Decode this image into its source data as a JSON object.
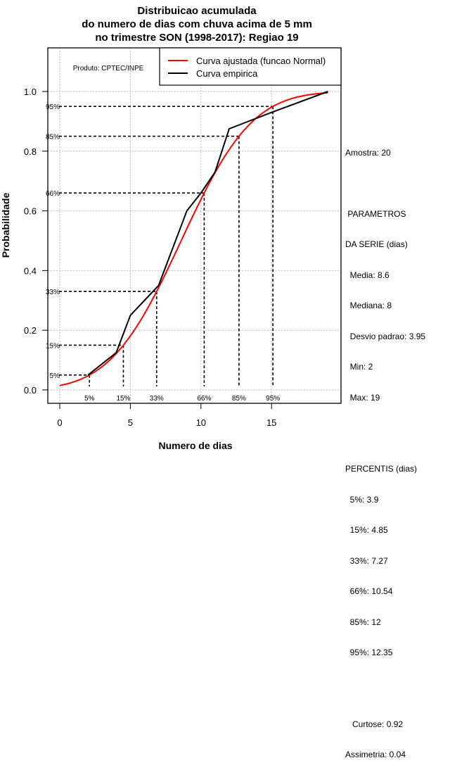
{
  "chart_data": {
    "type": "line",
    "title": [
      "Distribuicao acumulada",
      "do numero de dias com chuva acima de 5 mm",
      "no trimestre SON (1998-2017): Regiao 19"
    ],
    "xlabel": "Numero de dias",
    "ylabel": "Probabilidade",
    "xlim": [
      0,
      19
    ],
    "ylim": [
      0,
      1.1
    ],
    "xticks": [
      0,
      5,
      10,
      15
    ],
    "yticks": [
      0.0,
      0.2,
      0.4,
      0.6,
      0.8,
      1.0
    ],
    "ytick_labels": [
      "0.0",
      "0.2",
      "0.4",
      "0.6",
      "0.8",
      "1.0"
    ],
    "grid": true,
    "legend_position": "top-right",
    "annotation": "Produto: CPTEC/INPE",
    "series": [
      {
        "name": "Curva ajustada (funcao Normal)",
        "color": "#ff0000",
        "distribution": "normal",
        "mean": 8.6,
        "sd": 3.95,
        "x_range": [
          0,
          19
        ]
      },
      {
        "name": "Curva empirica",
        "color": "#000000",
        "x": [
          2,
          4,
          5,
          7,
          9,
          10,
          11,
          12,
          15,
          19
        ],
        "y": [
          0.05,
          0.125,
          0.25,
          0.35,
          0.6,
          0.66,
          0.73,
          0.875,
          0.93,
          1.0
        ]
      }
    ],
    "percentiles": [
      {
        "label": "5%",
        "p": 0.05,
        "x": 3.9
      },
      {
        "label": "15%",
        "p": 0.15,
        "x": 4.85
      },
      {
        "label": "33%",
        "p": 0.33,
        "x": 7.27
      },
      {
        "label": "66%",
        "p": 0.66,
        "x": 10.54
      },
      {
        "label": "85%",
        "p": 0.85,
        "x": 12
      },
      {
        "label": "95%",
        "p": 0.95,
        "x": 12.35
      }
    ]
  },
  "side_panel": {
    "amostra": "Amostra: 20",
    "params_title1": " PARAMETROS",
    "params_title2": "DA SERIE (dias)",
    "media": "  Media: 8.6",
    "mediana": "  Mediana: 8",
    "desvio": "  Desvio padrao: 3.95",
    "min": "  Min: 2",
    "max": "  Max: 19",
    "perc_title": "PERCENTIS (dias)",
    "p5": "  5%: 3.9",
    "p15": "  15%: 4.85",
    "p33": "  33%: 7.27",
    "p66": "  66%: 10.54",
    "p85": "  85%: 12",
    "p95": "  95%: 12.35",
    "curtose": "   Curtose: 0.92",
    "assimetria": "Assimetria: 0.04"
  }
}
